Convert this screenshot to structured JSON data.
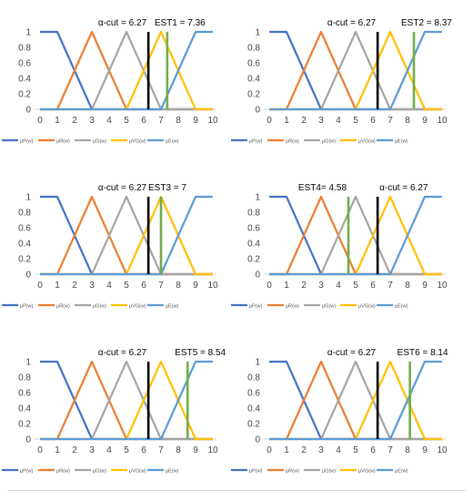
{
  "chart_data": [
    {
      "type": "line",
      "alpha_label": "α-cut = 6.27",
      "alpha_value": 6.27,
      "est_label": "EST1 = 7.36",
      "est_value": 7.36
    },
    {
      "type": "line",
      "alpha_label": "α-cut = 6.27",
      "alpha_value": 6.27,
      "est_label": "EST2 = 8.37",
      "est_value": 8.37
    },
    {
      "type": "line",
      "alpha_label": "α-cut = 6.27",
      "alpha_value": 6.27,
      "est_label": "EST3 = 7",
      "est_value": 7
    },
    {
      "type": "line",
      "alpha_label": "α-cut = 6.27",
      "alpha_value": 6.27,
      "est_label": "EST4= 4.58",
      "est_value": 4.58
    },
    {
      "type": "line",
      "alpha_label": "α-cut = 6.27",
      "alpha_value": 6.27,
      "est_label": "EST5 = 8.54",
      "est_value": 8.54
    },
    {
      "type": "line",
      "alpha_label": "α-cut = 6.27",
      "alpha_value": 6.27,
      "est_label": "EST6 = 8.14",
      "est_value": 8.14
    }
  ],
  "shared": {
    "xlim": [
      0,
      10
    ],
    "ylim": [
      0,
      1
    ],
    "x_ticks": [
      "0",
      "1",
      "2",
      "3",
      "4",
      "5",
      "6",
      "7",
      "8",
      "9",
      "10"
    ],
    "y_ticks": [
      "0",
      "0.2",
      "0.4",
      "0.6",
      "0.8",
      "1"
    ],
    "grid": false,
    "legend_position": "bottom",
    "alpha_line_color": "#000000",
    "est_line_color": "#70AD47",
    "series": [
      {
        "name": "μP(w)",
        "color": "#4472C4",
        "x": [
          0,
          1,
          3,
          10
        ],
        "y": [
          1,
          1,
          0,
          0
        ]
      },
      {
        "name": "μR(w)",
        "color": "#ED7D31",
        "x": [
          0,
          1,
          3,
          5,
          10
        ],
        "y": [
          0,
          0,
          1,
          0,
          0
        ]
      },
      {
        "name": "μG(w)",
        "color": "#A5A5A5",
        "x": [
          0,
          3,
          5,
          7,
          10
        ],
        "y": [
          0,
          0,
          1,
          0,
          0
        ]
      },
      {
        "name": "μVG(w)",
        "color": "#FFC000",
        "x": [
          0,
          5,
          7,
          9,
          10
        ],
        "y": [
          0,
          0,
          1,
          0,
          0
        ]
      },
      {
        "name": "μE(w)",
        "color": "#5B9BD5",
        "x": [
          0,
          7,
          9,
          10
        ],
        "y": [
          0,
          0,
          1,
          1
        ]
      }
    ]
  }
}
